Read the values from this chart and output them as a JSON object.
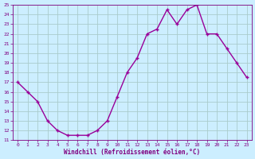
{
  "x": [
    0,
    1,
    2,
    3,
    4,
    5,
    6,
    7,
    8,
    9,
    10,
    11,
    12,
    13,
    14,
    15,
    16,
    17,
    18,
    19,
    20,
    21,
    22,
    23
  ],
  "y": [
    17,
    16,
    15,
    13,
    12,
    11.5,
    11.5,
    11.5,
    12,
    13,
    15.5,
    18,
    19.5,
    22,
    22.5,
    24.5,
    23,
    24.5,
    25,
    22,
    22,
    20.5,
    19,
    17.5
  ],
  "line_color": "#990099",
  "marker": "P",
  "marker_size": 2.5,
  "bg_color": "#cceeff",
  "grid_color": "#aacccc",
  "xlabel": "Windchill (Refroidissement éolien,°C)",
  "xlim": [
    -0.5,
    23.5
  ],
  "ylim": [
    11,
    25
  ],
  "yticks": [
    11,
    12,
    13,
    14,
    15,
    16,
    17,
    18,
    19,
    20,
    21,
    22,
    23,
    24,
    25
  ],
  "xticks": [
    0,
    1,
    2,
    3,
    4,
    5,
    6,
    7,
    8,
    9,
    10,
    11,
    12,
    13,
    14,
    15,
    16,
    17,
    18,
    19,
    20,
    21,
    22,
    23
  ],
  "tick_color": "#800080",
  "label_color": "#800080",
  "line_width": 1.0
}
